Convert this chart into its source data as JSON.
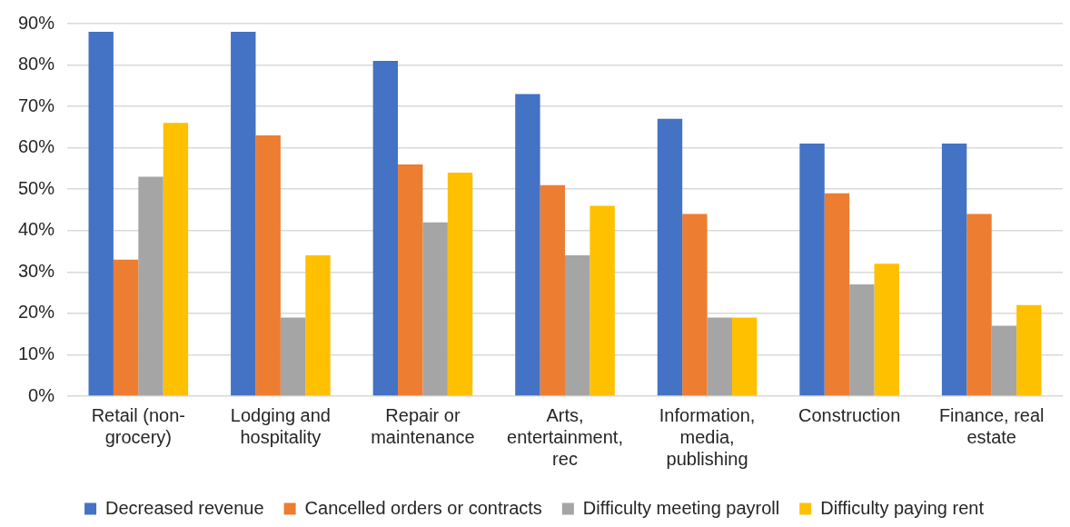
{
  "chart_data": {
    "type": "bar",
    "categories": [
      "Retail (non-grocery)",
      "Lodging and hospitality",
      "Repair or maintenance",
      "Arts, entertainment, rec",
      "Information, media, publishing",
      "Construction",
      "Finance, real estate"
    ],
    "series": [
      {
        "name": "Decreased revenue",
        "color": "#4472c4",
        "values": [
          88,
          88,
          81,
          73,
          67,
          61,
          61
        ]
      },
      {
        "name": "Cancelled orders or contracts",
        "color": "#ed7d31",
        "values": [
          33,
          63,
          56,
          51,
          44,
          49,
          44
        ]
      },
      {
        "name": "Difficulty meeting payroll",
        "color": "#a5a5a5",
        "values": [
          53,
          19,
          42,
          34,
          19,
          27,
          17
        ]
      },
      {
        "name": "Difficulty paying rent",
        "color": "#ffc000",
        "values": [
          66,
          34,
          54,
          46,
          19,
          32,
          22
        ]
      }
    ],
    "ylim": [
      0,
      90
    ],
    "yticks": [
      {
        "value": 0,
        "label": "0%"
      },
      {
        "value": 10,
        "label": "10%"
      },
      {
        "value": 20,
        "label": "20%"
      },
      {
        "value": 30,
        "label": "30%"
      },
      {
        "value": 40,
        "label": "40%"
      },
      {
        "value": 50,
        "label": "50%"
      },
      {
        "value": 60,
        "label": "60%"
      },
      {
        "value": 70,
        "label": "70%"
      },
      {
        "value": 80,
        "label": "80%"
      },
      {
        "value": 90,
        "label": "90%"
      }
    ],
    "grid": "y",
    "legend": "bottom"
  }
}
